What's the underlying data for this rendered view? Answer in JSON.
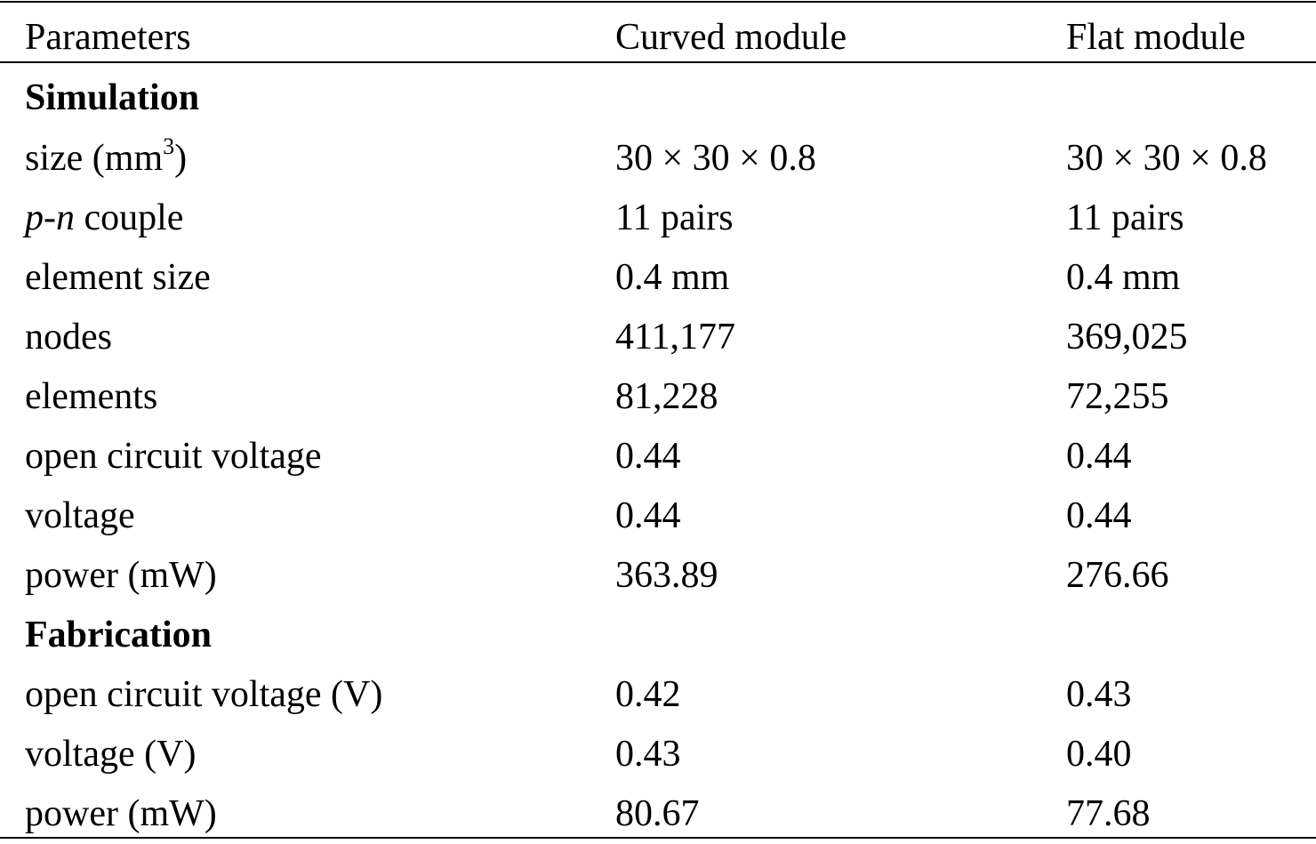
{
  "header": {
    "col1": "Parameters",
    "col2": "Curved module",
    "col3": "Flat module"
  },
  "sections": {
    "simulation": "Simulation",
    "fabrication": "Fabrication"
  },
  "rows": [
    {
      "label": "size (mm",
      "label_sup": "3",
      "label_tail": ")",
      "curved": "30 × 30 × 0.8",
      "flat": "30 × 30 × 0.8"
    },
    {
      "label_italic": "p",
      "label_sep": "-",
      "label_italic2": "n",
      "label_tail": " couple",
      "curved": "11 pairs",
      "flat": "11 pairs"
    },
    {
      "label": "element size",
      "curved": "0.4 mm",
      "flat": "0.4 mm"
    },
    {
      "label": "nodes",
      "curved": "411,177",
      "flat": "369,025"
    },
    {
      "label": "elements",
      "curved": "81,228",
      "flat": "72,255"
    },
    {
      "label": "open circuit voltage",
      "curved": "0.44",
      "flat": "0.44"
    },
    {
      "label": "voltage",
      "curved": "0.44",
      "flat": "0.44"
    },
    {
      "label": "power (mW)",
      "curved": "363.89",
      "flat": "276.66"
    },
    {
      "label": "open circuit voltage (V)",
      "curved": "0.42",
      "flat": "0.43"
    },
    {
      "label": "voltage (V)",
      "curved": "0.43",
      "flat": "0.40"
    },
    {
      "label": "power (mW)",
      "curved": "80.67",
      "flat": "77.68"
    }
  ]
}
